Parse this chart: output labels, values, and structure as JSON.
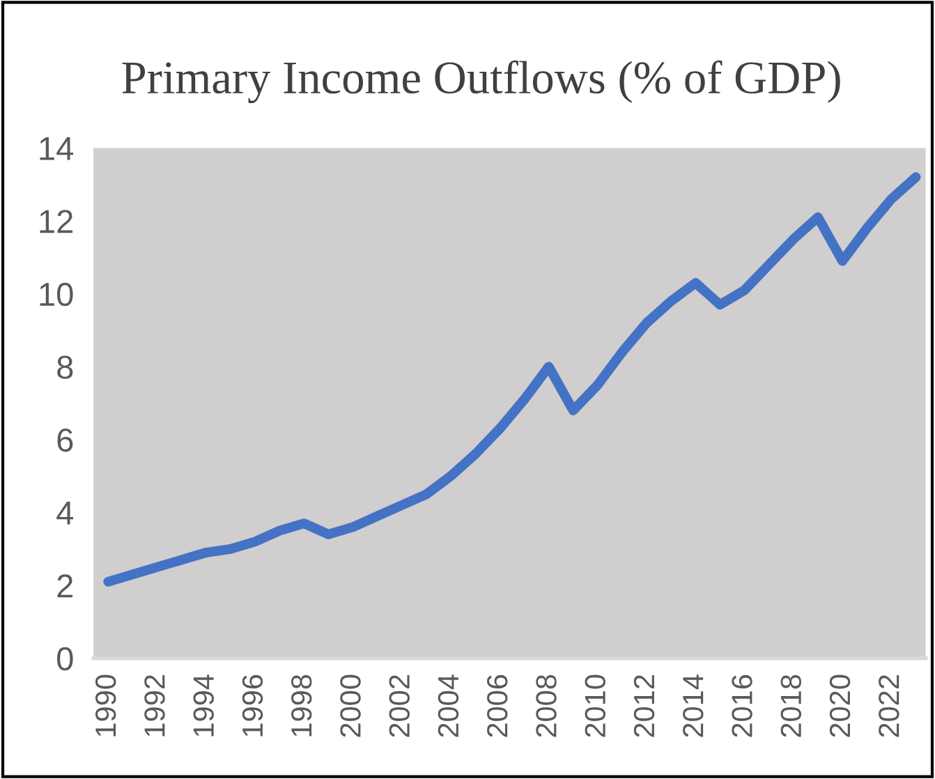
{
  "chart_data": {
    "type": "line",
    "title": "Primary Income Outflows (% of GDP)",
    "categories": [
      "1990",
      null,
      "1992",
      null,
      "1994",
      null,
      "1996",
      null,
      "1998",
      null,
      "2000",
      null,
      "2002",
      null,
      "2004",
      null,
      "2006",
      null,
      "2008",
      null,
      "2010",
      null,
      "2012",
      null,
      "2014",
      null,
      "2016",
      null,
      "2018",
      null,
      "2020",
      null,
      "2022",
      null
    ],
    "series": [
      {
        "color": "#4472c4",
        "values": [
          2.1,
          2.3,
          2.5,
          2.7,
          2.9,
          3.0,
          3.2,
          3.5,
          3.7,
          3.4,
          3.6,
          3.9,
          4.2,
          4.5,
          5.0,
          5.6,
          6.3,
          7.1,
          8.0,
          6.8,
          7.5,
          8.4,
          9.2,
          9.8,
          10.3,
          9.7,
          10.1,
          10.8,
          11.5,
          12.1,
          10.9,
          11.8,
          12.6,
          13.2
        ]
      }
    ],
    "ylim": [
      0,
      14
    ],
    "yticks": [
      0,
      2,
      4,
      6,
      8,
      10,
      12,
      14
    ],
    "grid": false,
    "marker": "none",
    "line_style": "solid"
  }
}
